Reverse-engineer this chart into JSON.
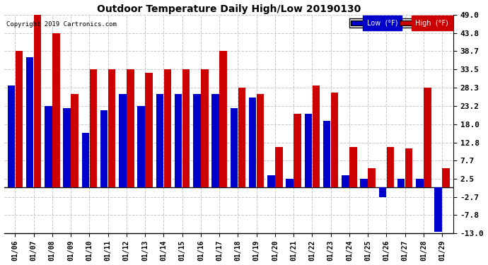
{
  "title": "Outdoor Temperature Daily High/Low 20190130",
  "copyright": "Copyright 2019 Cartronics.com",
  "legend_low": "Low  (°F)",
  "legend_high": "High  (°F)",
  "low_color": "#0000cc",
  "high_color": "#cc0000",
  "background_color": "#ffffff",
  "grid_color": "#bbbbbb",
  "ylim": [
    -13.0,
    49.0
  ],
  "ytick_vals": [
    -13.0,
    -7.8,
    -2.7,
    2.5,
    7.7,
    12.8,
    18.0,
    23.2,
    28.3,
    33.5,
    38.7,
    43.8,
    49.0
  ],
  "ytick_labels": [
    "-13.0",
    "-7.8",
    "-2.7",
    "2.5",
    "7.7",
    "12.8",
    "18.0",
    "23.2",
    "28.3",
    "33.5",
    "38.7",
    "43.8",
    "49.0"
  ],
  "dates": [
    "01/06",
    "01/07",
    "01/08",
    "01/09",
    "01/10",
    "01/11",
    "01/12",
    "01/13",
    "01/14",
    "01/15",
    "01/16",
    "01/17",
    "01/18",
    "01/19",
    "01/20",
    "01/21",
    "01/22",
    "01/23",
    "01/24",
    "01/25",
    "01/26",
    "01/27",
    "01/28",
    "01/29"
  ],
  "low_vals": [
    29.0,
    37.0,
    23.2,
    22.5,
    15.5,
    22.0,
    26.5,
    23.2,
    26.5,
    26.5,
    26.5,
    26.5,
    22.5,
    25.5,
    3.5,
    2.5,
    21.0,
    19.0,
    3.5,
    2.5,
    -2.7,
    2.5,
    2.5,
    -12.5
  ],
  "high_vals": [
    38.7,
    49.0,
    43.8,
    26.5,
    33.5,
    33.5,
    33.5,
    32.5,
    33.5,
    33.5,
    33.5,
    38.7,
    28.3,
    26.5,
    11.5,
    21.0,
    29.0,
    27.0,
    11.5,
    5.5,
    11.5,
    11.0,
    28.3,
    5.5
  ]
}
